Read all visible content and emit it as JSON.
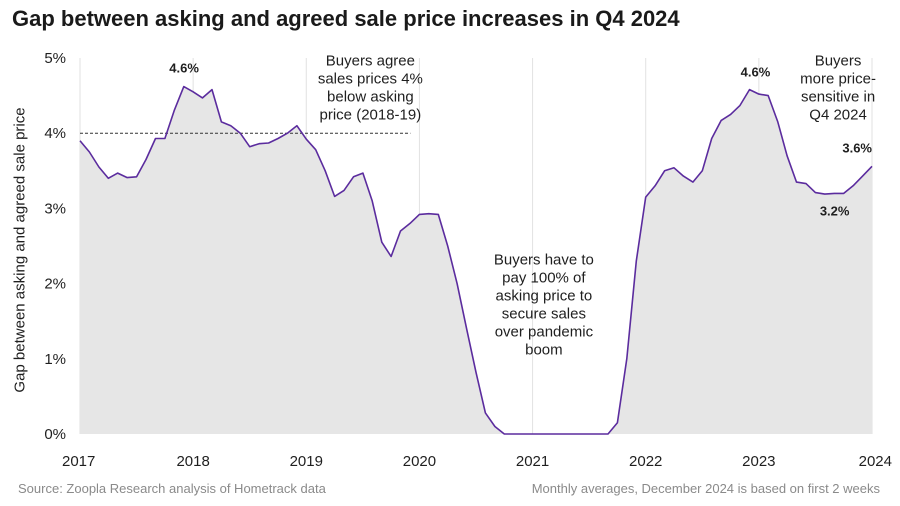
{
  "chart_data": {
    "type": "area",
    "title": "Gap between asking and agreed sale price increases in Q4 2024",
    "ylabel": "Gap between asking and agreed sale price",
    "xlabel": "",
    "xlim": [
      2017,
      2024
    ],
    "ylim": [
      0,
      5
    ],
    "x_ticks": [
      "2017",
      "2018",
      "2019",
      "2020",
      "2021",
      "2022",
      "2023",
      "2024"
    ],
    "y_ticks": [
      "0%",
      "1%",
      "2%",
      "3%",
      "4%",
      "5%"
    ],
    "colors": {
      "line": "#5b2c9e",
      "area": "#e6e6e6",
      "grid": "#e2e2e2",
      "reference": "#333333"
    },
    "series": [
      {
        "name": "Gap between asking and agreed sale price",
        "x": [
          2017.0,
          2017.083,
          2017.167,
          2017.25,
          2017.333,
          2017.417,
          2017.5,
          2017.583,
          2017.667,
          2017.75,
          2017.833,
          2017.917,
          2018.0,
          2018.083,
          2018.167,
          2018.25,
          2018.333,
          2018.417,
          2018.5,
          2018.583,
          2018.667,
          2018.75,
          2018.833,
          2018.917,
          2019.0,
          2019.083,
          2019.167,
          2019.25,
          2019.333,
          2019.417,
          2019.5,
          2019.583,
          2019.667,
          2019.75,
          2019.833,
          2019.917,
          2020.0,
          2020.083,
          2020.167,
          2020.25,
          2020.333,
          2020.417,
          2020.5,
          2020.583,
          2020.667,
          2020.75,
          2020.833,
          2021.0,
          2021.25,
          2021.5,
          2021.667,
          2021.75,
          2021.833,
          2021.917,
          2022.0,
          2022.083,
          2022.167,
          2022.25,
          2022.333,
          2022.417,
          2022.5,
          2022.583,
          2022.667,
          2022.75,
          2022.833,
          2022.917,
          2023.0,
          2023.083,
          2023.167,
          2023.25,
          2023.333,
          2023.417,
          2023.5,
          2023.583,
          2023.667,
          2023.75,
          2023.833,
          2023.917,
          2024.0
        ],
        "y": [
          3.9,
          3.75,
          3.55,
          3.4,
          3.47,
          3.41,
          3.42,
          3.65,
          3.93,
          3.93,
          4.3,
          4.62,
          4.55,
          4.47,
          4.58,
          4.15,
          4.1,
          4.0,
          3.82,
          3.86,
          3.87,
          3.93,
          4.0,
          4.1,
          3.92,
          3.78,
          3.5,
          3.16,
          3.24,
          3.42,
          3.47,
          3.1,
          2.55,
          2.36,
          2.7,
          2.8,
          2.92,
          2.93,
          2.92,
          2.5,
          2.0,
          1.4,
          0.82,
          0.28,
          0.1,
          0.0,
          0.0,
          0.0,
          0.0,
          0.0,
          0.0,
          0.15,
          1.0,
          2.3,
          3.15,
          3.3,
          3.5,
          3.54,
          3.43,
          3.35,
          3.5,
          3.93,
          4.17,
          4.25,
          4.37,
          4.58,
          4.52,
          4.5,
          4.15,
          3.7,
          3.35,
          3.33,
          3.21,
          3.19,
          3.2,
          3.2,
          3.3,
          3.43,
          3.56
        ]
      }
    ],
    "reference_line": {
      "y": 4.0,
      "x_start": 2017.0,
      "x_end": 2019.92,
      "style": "dashed"
    },
    "data_labels": [
      {
        "text": "4.6%",
        "x": 2017.92,
        "y": 4.62,
        "anchor": "middle",
        "dy": -14
      },
      {
        "text": "4.6%",
        "x": 2022.97,
        "y": 4.58,
        "anchor": "middle",
        "dy": -13
      },
      {
        "text": "3.2%",
        "x": 2023.67,
        "y": 3.2,
        "anchor": "middle",
        "dy": 22
      },
      {
        "text": "3.6%",
        "x": 2024.0,
        "y": 3.56,
        "anchor": "end",
        "dy": -14
      }
    ],
    "annotations": [
      {
        "x": 2019.92,
        "y": 4.85,
        "lines": [
          "Buyers agree",
          "sales prices 4%",
          "below asking",
          "price (2018-19)"
        ]
      },
      {
        "x": 2021.1,
        "y": 2.2,
        "lines": [
          "Buyers have to",
          "pay 100% of",
          "asking price to",
          "secure sales",
          "over pandemic",
          "boom"
        ]
      },
      {
        "x": 2023.7,
        "y": 4.85,
        "lines": [
          "Buyers",
          "more price-",
          "sensitive in",
          "Q4 2024"
        ]
      }
    ]
  },
  "footer": {
    "source": "Source: Zoopla Research analysis of Hometrack data",
    "note": "Monthly averages, December 2024 is based on first 2 weeks"
  }
}
